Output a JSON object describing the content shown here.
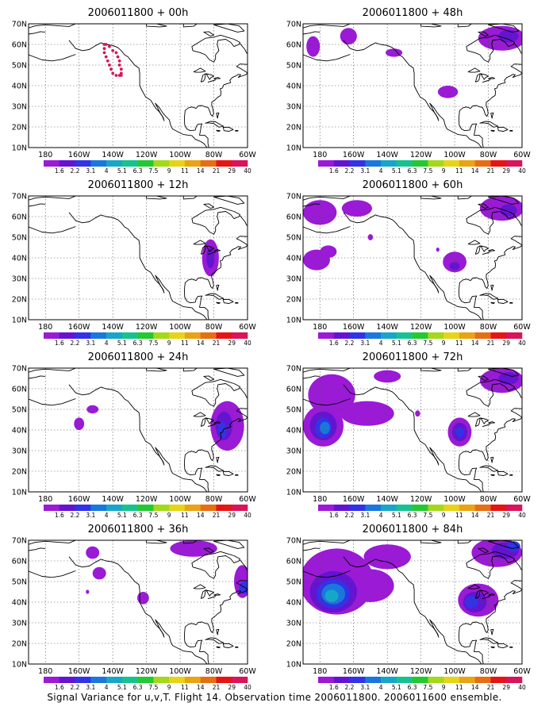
{
  "figure": {
    "caption": "Signal Variance for u,v,T. Flight 14. Observation time 2006011800. 2006011600 ensemble."
  },
  "colors": {
    "colorbar": [
      "#9a1ad6",
      "#6414d0",
      "#3232e6",
      "#1a78dc",
      "#18a6c8",
      "#16c38e",
      "#24c832",
      "#a4d81a",
      "#e6d418",
      "#e8a414",
      "#e66e14",
      "#e61414",
      "#d8145a"
    ],
    "coast": "#000000",
    "grid": "#555555",
    "flight_track": "#d8145a"
  },
  "chart_data": [
    {
      "type": "contour-map",
      "title": "2006011800 + 00h",
      "lead_time": "00h",
      "x_ticks": [
        "180",
        "160W",
        "140W",
        "120W",
        "100W",
        "80W",
        "60W"
      ],
      "y_ticks": [
        "10N",
        "20N",
        "30N",
        "40N",
        "50N",
        "60N",
        "70N"
      ],
      "lon_range": [
        -190,
        -60
      ],
      "lat_range": [
        10,
        70
      ],
      "grid": true,
      "colorbar_levels": [
        "1.6",
        "2.2",
        "3.1",
        "4",
        "5.1",
        "6.3",
        "7.5",
        "9",
        "11",
        "14",
        "21",
        "29",
        "40"
      ],
      "flight_track": [
        [
          -145,
          60
        ],
        [
          -145,
          58
        ],
        [
          -145,
          56
        ],
        [
          -144,
          54
        ],
        [
          -143,
          52
        ],
        [
          -142,
          50
        ],
        [
          -141,
          48
        ],
        [
          -140,
          46
        ],
        [
          -138,
          45
        ],
        [
          -136,
          45
        ],
        [
          -135,
          45
        ],
        [
          -135,
          46
        ],
        [
          -135,
          48
        ],
        [
          -136,
          50
        ],
        [
          -136,
          52
        ],
        [
          -137,
          54
        ],
        [
          -138,
          56
        ],
        [
          -140,
          57
        ],
        [
          -142,
          59
        ],
        [
          -144,
          60
        ]
      ],
      "regions": []
    },
    {
      "type": "contour-map",
      "title": "2006011800 + 12h",
      "lead_time": "12h",
      "x_ticks": [
        "180",
        "160W",
        "140W",
        "120W",
        "100W",
        "80W",
        "60W"
      ],
      "y_ticks": [
        "10N",
        "20N",
        "30N",
        "40N",
        "50N",
        "60N",
        "70N"
      ],
      "lon_range": [
        -190,
        -60
      ],
      "lat_range": [
        10,
        70
      ],
      "grid": true,
      "colorbar_levels": [
        "1.6",
        "2.2",
        "3.1",
        "4",
        "5.1",
        "6.3",
        "7.5",
        "9",
        "11",
        "14",
        "21",
        "29",
        "40"
      ],
      "regions": [
        {
          "lon": -82,
          "lat": 40,
          "rlon": 5,
          "rlat": 9,
          "level": 0
        },
        {
          "lon": -82,
          "lat": 40,
          "rlon": 2.5,
          "rlat": 5,
          "level": 1
        }
      ]
    },
    {
      "type": "contour-map",
      "title": "2006011800 + 24h",
      "lead_time": "24h",
      "x_ticks": [
        "180",
        "160W",
        "140W",
        "120W",
        "100W",
        "80W",
        "60W"
      ],
      "y_ticks": [
        "10N",
        "20N",
        "30N",
        "40N",
        "50N",
        "60N",
        "70N"
      ],
      "lon_range": [
        -190,
        -60
      ],
      "lat_range": [
        10,
        70
      ],
      "grid": true,
      "colorbar_levels": [
        "1.6",
        "2.2",
        "3.1",
        "4",
        "5.1",
        "6.3",
        "7.5",
        "9",
        "11",
        "14",
        "21",
        "29",
        "40"
      ],
      "regions": [
        {
          "lon": -160,
          "lat": 43,
          "rlon": 3,
          "rlat": 3,
          "level": 0
        },
        {
          "lon": -152,
          "lat": 50,
          "rlon": 3.5,
          "rlat": 2,
          "level": 0
        },
        {
          "lon": -72,
          "lat": 42,
          "rlon": 10,
          "rlat": 12,
          "level": 0
        },
        {
          "lon": -74,
          "lat": 42,
          "rlon": 5,
          "rlat": 7,
          "level": 1
        },
        {
          "lon": -75,
          "lat": 40,
          "rlon": 2.5,
          "rlat": 4,
          "level": 2
        }
      ]
    },
    {
      "type": "contour-map",
      "title": "2006011800 + 36h",
      "lead_time": "36h",
      "x_ticks": [
        "180",
        "160W",
        "140W",
        "120W",
        "100W",
        "80W",
        "60W"
      ],
      "y_ticks": [
        "10N",
        "20N",
        "30N",
        "40N",
        "50N",
        "60N",
        "70N"
      ],
      "lon_range": [
        -190,
        -60
      ],
      "lat_range": [
        10,
        70
      ],
      "grid": true,
      "colorbar_levels": [
        "1.6",
        "2.2",
        "3.1",
        "4",
        "5.1",
        "6.3",
        "7.5",
        "9",
        "11",
        "14",
        "21",
        "29",
        "40"
      ],
      "regions": [
        {
          "lon": -152,
          "lat": 64,
          "rlon": 4,
          "rlat": 3,
          "level": 0
        },
        {
          "lon": -92,
          "lat": 66,
          "rlon": 14,
          "rlat": 4,
          "level": 0
        },
        {
          "lon": -148,
          "lat": 54,
          "rlon": 4,
          "rlat": 3,
          "level": 0
        },
        {
          "lon": -122,
          "lat": 42,
          "rlon": 3.5,
          "rlat": 3,
          "level": 0
        },
        {
          "lon": -155,
          "lat": 45,
          "rlon": 1,
          "rlat": 1,
          "level": 0
        },
        {
          "lon": -63,
          "lat": 50,
          "rlon": 5,
          "rlat": 8,
          "level": 0
        },
        {
          "lon": -62,
          "lat": 47,
          "rlon": 3,
          "rlat": 3,
          "level": 2
        }
      ]
    },
    {
      "type": "contour-map",
      "title": "2006011800 + 48h",
      "lead_time": "48h",
      "x_ticks": [
        "180",
        "160W",
        "140W",
        "120W",
        "100W",
        "80W",
        "60W"
      ],
      "y_ticks": [
        "10N",
        "20N",
        "30N",
        "40N",
        "50N",
        "60N",
        "70N"
      ],
      "lon_range": [
        -190,
        -60
      ],
      "lat_range": [
        10,
        70
      ],
      "grid": true,
      "colorbar_levels": [
        "1.6",
        "2.2",
        "3.1",
        "4",
        "5.1",
        "6.3",
        "7.5",
        "9",
        "11",
        "14",
        "21",
        "29",
        "40"
      ],
      "regions": [
        {
          "lon": -184,
          "lat": 59,
          "rlon": 4,
          "rlat": 5,
          "level": 0
        },
        {
          "lon": -163,
          "lat": 64,
          "rlon": 5,
          "rlat": 4,
          "level": 0
        },
        {
          "lon": -136,
          "lat": 56,
          "rlon": 5,
          "rlat": 2,
          "level": 0
        },
        {
          "lon": -104,
          "lat": 37,
          "rlon": 6,
          "rlat": 3,
          "level": 0
        },
        {
          "lon": -72,
          "lat": 63,
          "rlon": 14,
          "rlat": 6,
          "level": 0
        },
        {
          "lon": -68,
          "lat": 64,
          "rlon": 6,
          "rlat": 3,
          "level": 1
        }
      ]
    },
    {
      "type": "contour-map",
      "title": "2006011800 + 60h",
      "lead_time": "60h",
      "x_ticks": [
        "180",
        "160W",
        "140W",
        "120W",
        "100W",
        "80W",
        "60W"
      ],
      "y_ticks": [
        "10N",
        "20N",
        "30N",
        "40N",
        "50N",
        "60N",
        "70N"
      ],
      "lon_range": [
        -190,
        -60
      ],
      "lat_range": [
        10,
        70
      ],
      "grid": true,
      "colorbar_levels": [
        "1.6",
        "2.2",
        "3.1",
        "4",
        "5.1",
        "6.3",
        "7.5",
        "9",
        "11",
        "14",
        "21",
        "29",
        "40"
      ],
      "regions": [
        {
          "lon": -180,
          "lat": 62,
          "rlon": 10,
          "rlat": 6,
          "level": 0
        },
        {
          "lon": -158,
          "lat": 64,
          "rlon": 9,
          "rlat": 4,
          "level": 0
        },
        {
          "lon": -182,
          "lat": 39,
          "rlon": 8,
          "rlat": 5,
          "level": 0
        },
        {
          "lon": -175,
          "lat": 43,
          "rlon": 5,
          "rlat": 3,
          "level": 0
        },
        {
          "lon": -150,
          "lat": 50,
          "rlon": 1.5,
          "rlat": 1.5,
          "level": 0
        },
        {
          "lon": -100,
          "lat": 38,
          "rlon": 7,
          "rlat": 5,
          "level": 0
        },
        {
          "lon": -100,
          "lat": 36,
          "rlon": 3,
          "rlat": 2,
          "level": 1
        },
        {
          "lon": -110,
          "lat": 44,
          "rlon": 1,
          "rlat": 1,
          "level": 0
        },
        {
          "lon": -72,
          "lat": 64,
          "rlon": 13,
          "rlat": 6,
          "level": 0
        },
        {
          "lon": -68,
          "lat": 63,
          "rlon": 5,
          "rlat": 3,
          "level": 1
        }
      ]
    },
    {
      "type": "contour-map",
      "title": "2006011800 + 72h",
      "lead_time": "72h",
      "x_ticks": [
        "180",
        "160W",
        "140W",
        "120W",
        "100W",
        "80W",
        "60W"
      ],
      "y_ticks": [
        "10N",
        "20N",
        "30N",
        "40N",
        "50N",
        "60N",
        "70N"
      ],
      "lon_range": [
        -190,
        -60
      ],
      "lat_range": [
        10,
        70
      ],
      "grid": true,
      "colorbar_levels": [
        "1.6",
        "2.2",
        "3.1",
        "4",
        "5.1",
        "6.3",
        "7.5",
        "9",
        "11",
        "14",
        "21",
        "29",
        "40"
      ],
      "regions": [
        {
          "lon": -173,
          "lat": 57,
          "rlon": 14,
          "rlat": 10,
          "level": 0
        },
        {
          "lon": -152,
          "lat": 48,
          "rlon": 16,
          "rlat": 6,
          "level": 0
        },
        {
          "lon": -140,
          "lat": 66,
          "rlon": 8,
          "rlat": 3,
          "level": 0
        },
        {
          "lon": -178,
          "lat": 42,
          "rlon": 12,
          "rlat": 10,
          "level": 0
        },
        {
          "lon": -178,
          "lat": 42,
          "rlon": 8,
          "rlat": 7,
          "level": 1
        },
        {
          "lon": -178,
          "lat": 41,
          "rlon": 5,
          "rlat": 5,
          "level": 2
        },
        {
          "lon": -177,
          "lat": 41,
          "rlon": 3,
          "rlat": 3,
          "level": 3
        },
        {
          "lon": -122,
          "lat": 48,
          "rlon": 1.5,
          "rlat": 1.5,
          "level": 0
        },
        {
          "lon": -97,
          "lat": 39,
          "rlon": 7,
          "rlat": 7,
          "level": 0
        },
        {
          "lon": -97,
          "lat": 39,
          "rlon": 4.5,
          "rlat": 4.5,
          "level": 1
        },
        {
          "lon": -97,
          "lat": 39,
          "rlon": 2.5,
          "rlat": 2.5,
          "level": 2
        },
        {
          "lon": -72,
          "lat": 64,
          "rlon": 13,
          "rlat": 6,
          "level": 0
        },
        {
          "lon": -68,
          "lat": 65,
          "rlon": 6,
          "rlat": 3,
          "level": 1
        }
      ]
    },
    {
      "type": "contour-map",
      "title": "2006011800 + 84h",
      "lead_time": "84h",
      "x_ticks": [
        "180",
        "160W",
        "140W",
        "120W",
        "100W",
        "80W",
        "60W"
      ],
      "y_ticks": [
        "10N",
        "20N",
        "30N",
        "40N",
        "50N",
        "60N",
        "70N"
      ],
      "lon_range": [
        -190,
        -60
      ],
      "lat_range": [
        10,
        70
      ],
      "grid": true,
      "colorbar_levels": [
        "1.6",
        "2.2",
        "3.1",
        "4",
        "5.1",
        "6.3",
        "7.5",
        "9",
        "11",
        "14",
        "21",
        "29",
        "40"
      ],
      "regions": [
        {
          "lon": -170,
          "lat": 50,
          "rlon": 22,
          "rlat": 16,
          "level": 0
        },
        {
          "lon": -140,
          "lat": 62,
          "rlon": 14,
          "rlat": 6,
          "level": 0
        },
        {
          "lon": -150,
          "lat": 48,
          "rlon": 14,
          "rlat": 8,
          "level": 0
        },
        {
          "lon": -172,
          "lat": 45,
          "rlon": 14,
          "rlat": 10,
          "level": 1
        },
        {
          "lon": -172,
          "lat": 44,
          "rlon": 10,
          "rlat": 7,
          "level": 2
        },
        {
          "lon": -172,
          "lat": 44,
          "rlon": 7,
          "rlat": 5,
          "level": 3
        },
        {
          "lon": -173,
          "lat": 43,
          "rlon": 4,
          "rlat": 3,
          "level": 4
        },
        {
          "lon": -86,
          "lat": 41,
          "rlon": 12,
          "rlat": 8,
          "level": 0
        },
        {
          "lon": -88,
          "lat": 40,
          "rlon": 7,
          "rlat": 5,
          "level": 1
        },
        {
          "lon": -90,
          "lat": 40,
          "rlon": 4,
          "rlat": 3,
          "level": 2
        },
        {
          "lon": -75,
          "lat": 64,
          "rlon": 15,
          "rlat": 7,
          "level": 0
        },
        {
          "lon": -70,
          "lat": 65,
          "rlon": 8,
          "rlat": 4,
          "level": 1
        },
        {
          "lon": -65,
          "lat": 67,
          "rlon": 4,
          "rlat": 2.5,
          "level": 2
        }
      ]
    }
  ]
}
